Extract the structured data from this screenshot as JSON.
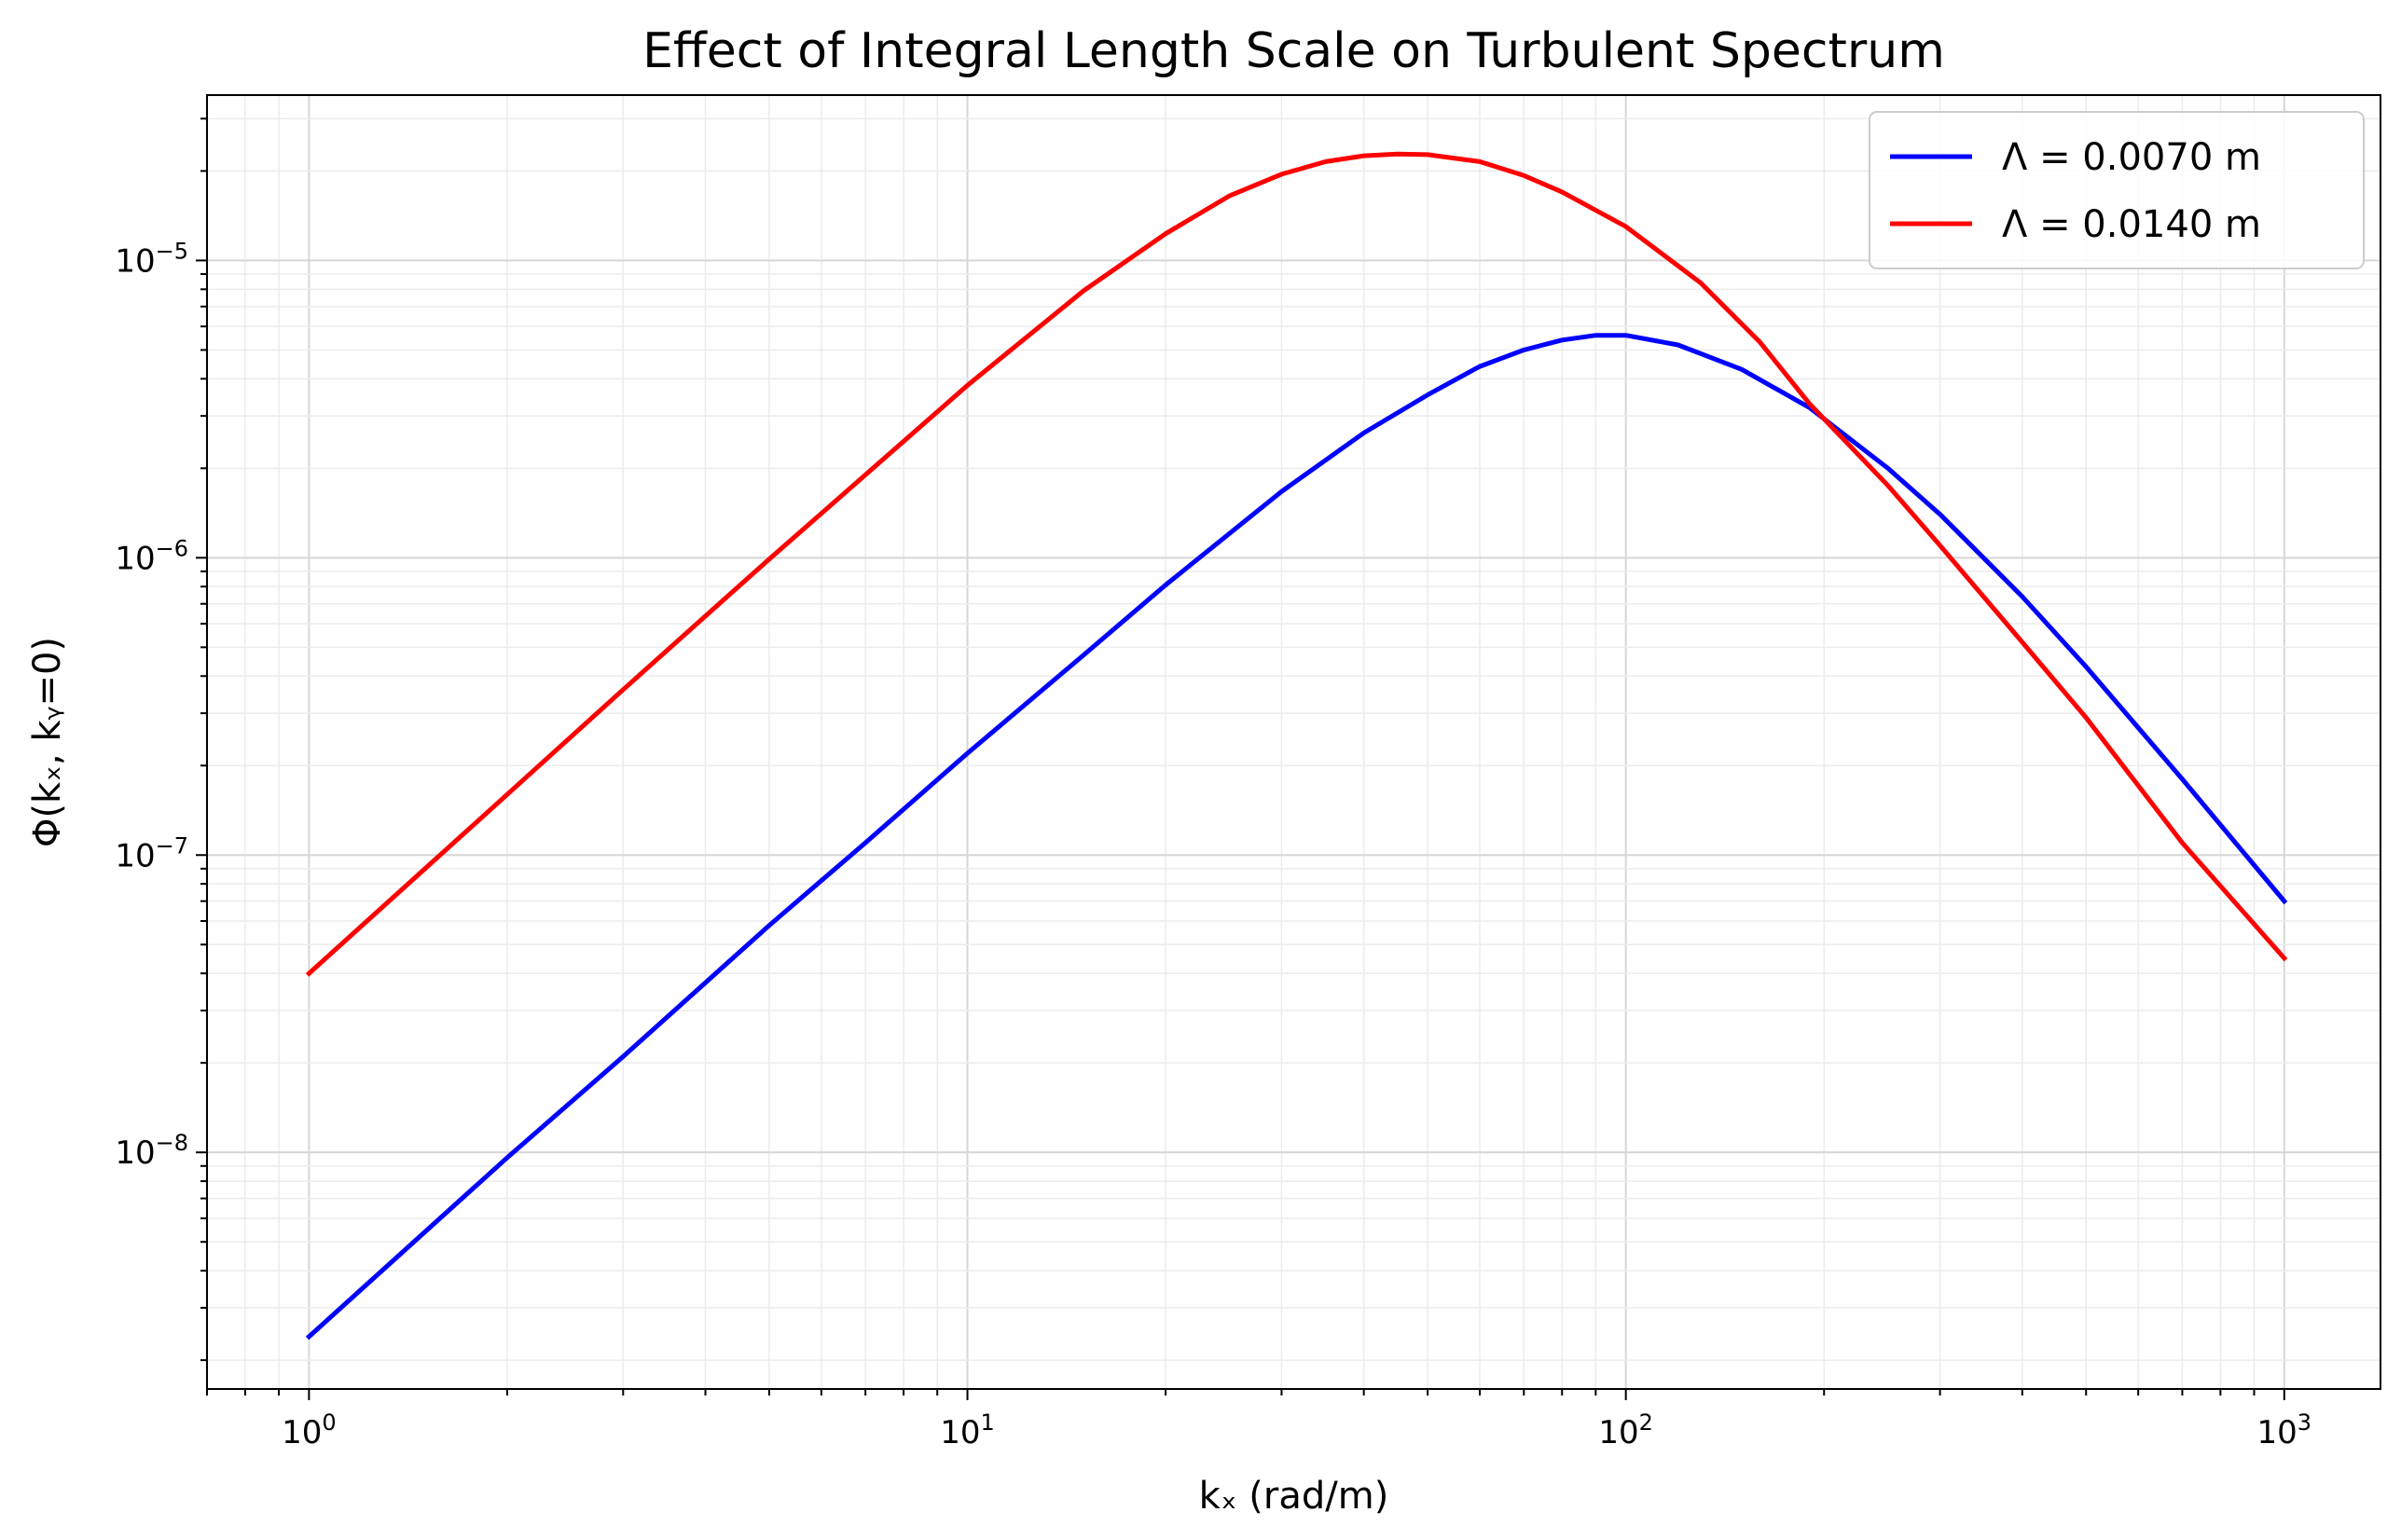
{
  "chart_data": {
    "type": "line",
    "title": "Effect of Integral Length Scale on Turbulent Spectrum",
    "xlabel": "kₓ (rad/m)",
    "ylabel": "Φ(kₓ, kᵧ=0)",
    "xscale": "log",
    "yscale": "log",
    "xlim": [
      0.7,
      1400
    ],
    "ylim": [
      1.6e-09,
      3.6e-05
    ],
    "x_ticks": [
      {
        "value": 1,
        "base": "10",
        "exp": "0"
      },
      {
        "value": 10,
        "base": "10",
        "exp": "1"
      },
      {
        "value": 100,
        "base": "10",
        "exp": "2"
      },
      {
        "value": 1000,
        "base": "10",
        "exp": "3"
      }
    ],
    "y_ticks": [
      {
        "value": 1e-08,
        "base": "10",
        "exp": "−8"
      },
      {
        "value": 1e-07,
        "base": "10",
        "exp": "−7"
      },
      {
        "value": 1e-06,
        "base": "10",
        "exp": "−6"
      },
      {
        "value": 1e-05,
        "base": "10",
        "exp": "−5"
      }
    ],
    "grid": true,
    "legend_position": "top-right",
    "series": [
      {
        "name": "Λ = 0.0070 m",
        "color": "#0000ff",
        "x": [
          1,
          2,
          3,
          5,
          7,
          10,
          15,
          20,
          30,
          40,
          50,
          60,
          70,
          80,
          90,
          100,
          120,
          150,
          190,
          250,
          300,
          400,
          500,
          700,
          1000
        ],
        "y": [
          2.4e-09,
          9.6e-09,
          2.1e-08,
          5.8e-08,
          1.1e-07,
          2.2e-07,
          4.7e-07,
          8.1e-07,
          1.67e-06,
          2.63e-06,
          3.53e-06,
          4.4e-06,
          5e-06,
          5.4e-06,
          5.6e-06,
          5.6e-06,
          5.2e-06,
          4.3e-06,
          3.2e-06,
          2e-06,
          1.4e-06,
          7.4e-07,
          4.3e-07,
          1.8e-07,
          7e-08
        ]
      },
      {
        "name": "Λ = 0.0140 m",
        "color": "#ff0000",
        "x": [
          1,
          2,
          3,
          5,
          7,
          10,
          15,
          20,
          25,
          30,
          35,
          40,
          45,
          50,
          60,
          70,
          80,
          100,
          130,
          160,
          190,
          250,
          300,
          400,
          500,
          700,
          1000
        ],
        "y": [
          4e-08,
          1.6e-07,
          3.6e-07,
          9.9e-07,
          1.9e-06,
          3.8e-06,
          7.9e-06,
          1.23e-05,
          1.65e-05,
          1.95e-05,
          2.15e-05,
          2.25e-05,
          2.28e-05,
          2.27e-05,
          2.15e-05,
          1.93e-05,
          1.7e-05,
          1.3e-05,
          8.4e-06,
          5.3e-06,
          3.3e-06,
          1.75e-06,
          1.1e-06,
          5.2e-07,
          2.9e-07,
          1.1e-07,
          4.5e-08
        ]
      }
    ]
  }
}
